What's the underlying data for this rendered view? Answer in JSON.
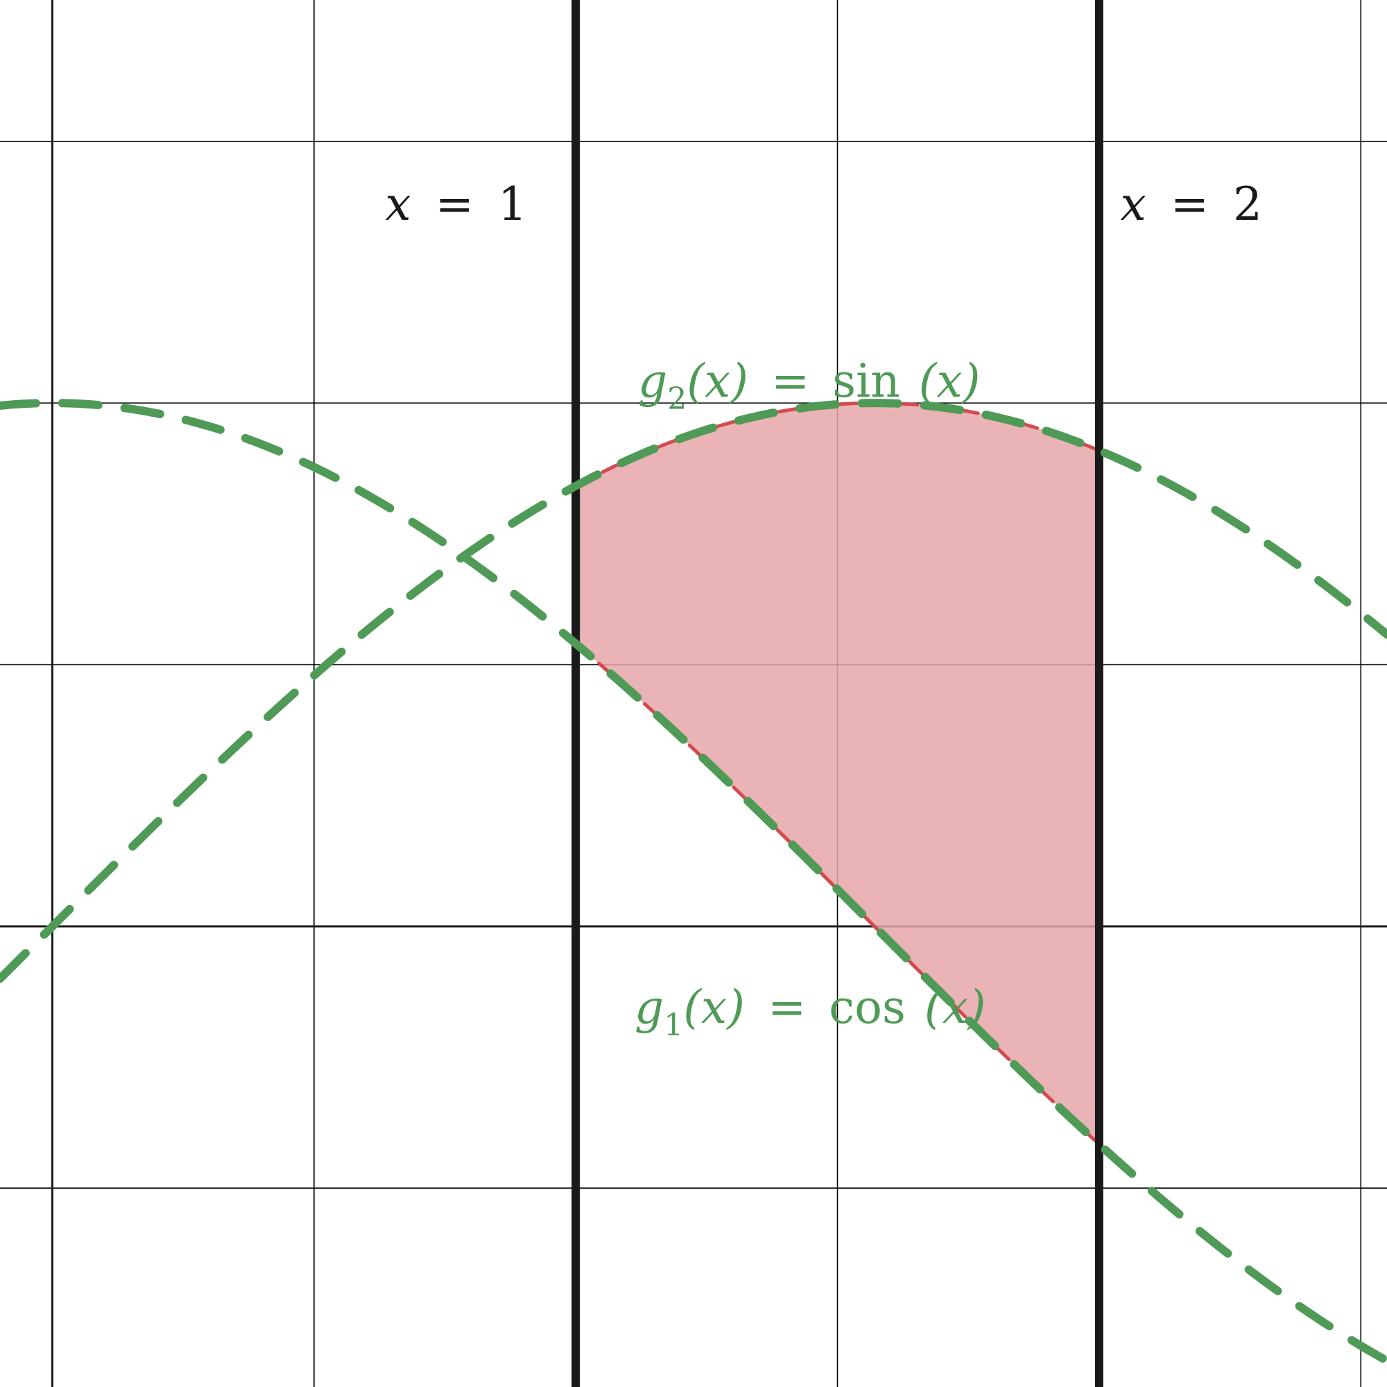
{
  "chart_data": {
    "type": "line",
    "xlim": [
      -0.1,
      2.55
    ],
    "ylim": [
      -0.88,
      1.77
    ],
    "grid": true,
    "grid_step": 0.5,
    "colors": {
      "curve": "#4e9a56",
      "region_fill": "#e6a6a8",
      "region_edge": "#d34a4f",
      "line": "#1a1a1a",
      "grid": "#000000"
    },
    "series": [
      {
        "key": "g1",
        "func": "cos"
      },
      {
        "key": "g2",
        "func": "sin"
      }
    ],
    "vertical_lines": [
      {
        "x": 1,
        "label_lhs": "x",
        "label_eq": "=",
        "label_rhs": "1"
      },
      {
        "x": 2,
        "label_lhs": "x",
        "label_eq": "=",
        "label_rhs": "2"
      }
    ],
    "shaded_region": {
      "between": [
        "g1",
        "g2"
      ],
      "x_from": 1,
      "x_to": 2
    },
    "labels": {
      "g1": {
        "fn": "g",
        "sub": "1",
        "arg": "(x)",
        "eq": "=",
        "rhs_fn": "cos",
        "rhs_arg": "(x)"
      },
      "g2": {
        "fn": "g",
        "sub": "2",
        "arg": "(x)",
        "eq": "=",
        "rhs_fn": "sin",
        "rhs_arg": "(x)"
      }
    }
  }
}
